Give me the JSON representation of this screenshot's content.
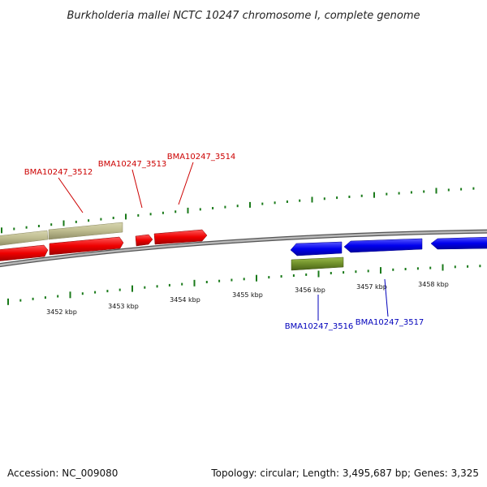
{
  "title": "Burkholderia mallei NCTC 10247 chromosome I, complete genome",
  "footer": {
    "accession": "Accession: NC_009080",
    "summary": "Topology: circular; Length: 3,495,687 bp; Genes: 3,325"
  },
  "colors": {
    "forward_label": "#cc0000",
    "reverse_label": "#0000bb",
    "tick": "#1a7a1a",
    "backbone": "#808080"
  },
  "ticks_outer": [],
  "tick_labels": [
    "3452 kbp",
    "3453 kbp",
    "3454 kbp",
    "3455 kbp",
    "3456 kbp",
    "3457 kbp",
    "3458 kbp"
  ],
  "gene_labels": [
    {
      "name": "BMA10247_3512",
      "strand": "forward"
    },
    {
      "name": "BMA10247_3513",
      "strand": "forward"
    },
    {
      "name": "BMA10247_3514",
      "strand": "forward"
    },
    {
      "name": "BMA10247_3516",
      "strand": "reverse"
    },
    {
      "name": "BMA10247_3517",
      "strand": "reverse"
    }
  ]
}
